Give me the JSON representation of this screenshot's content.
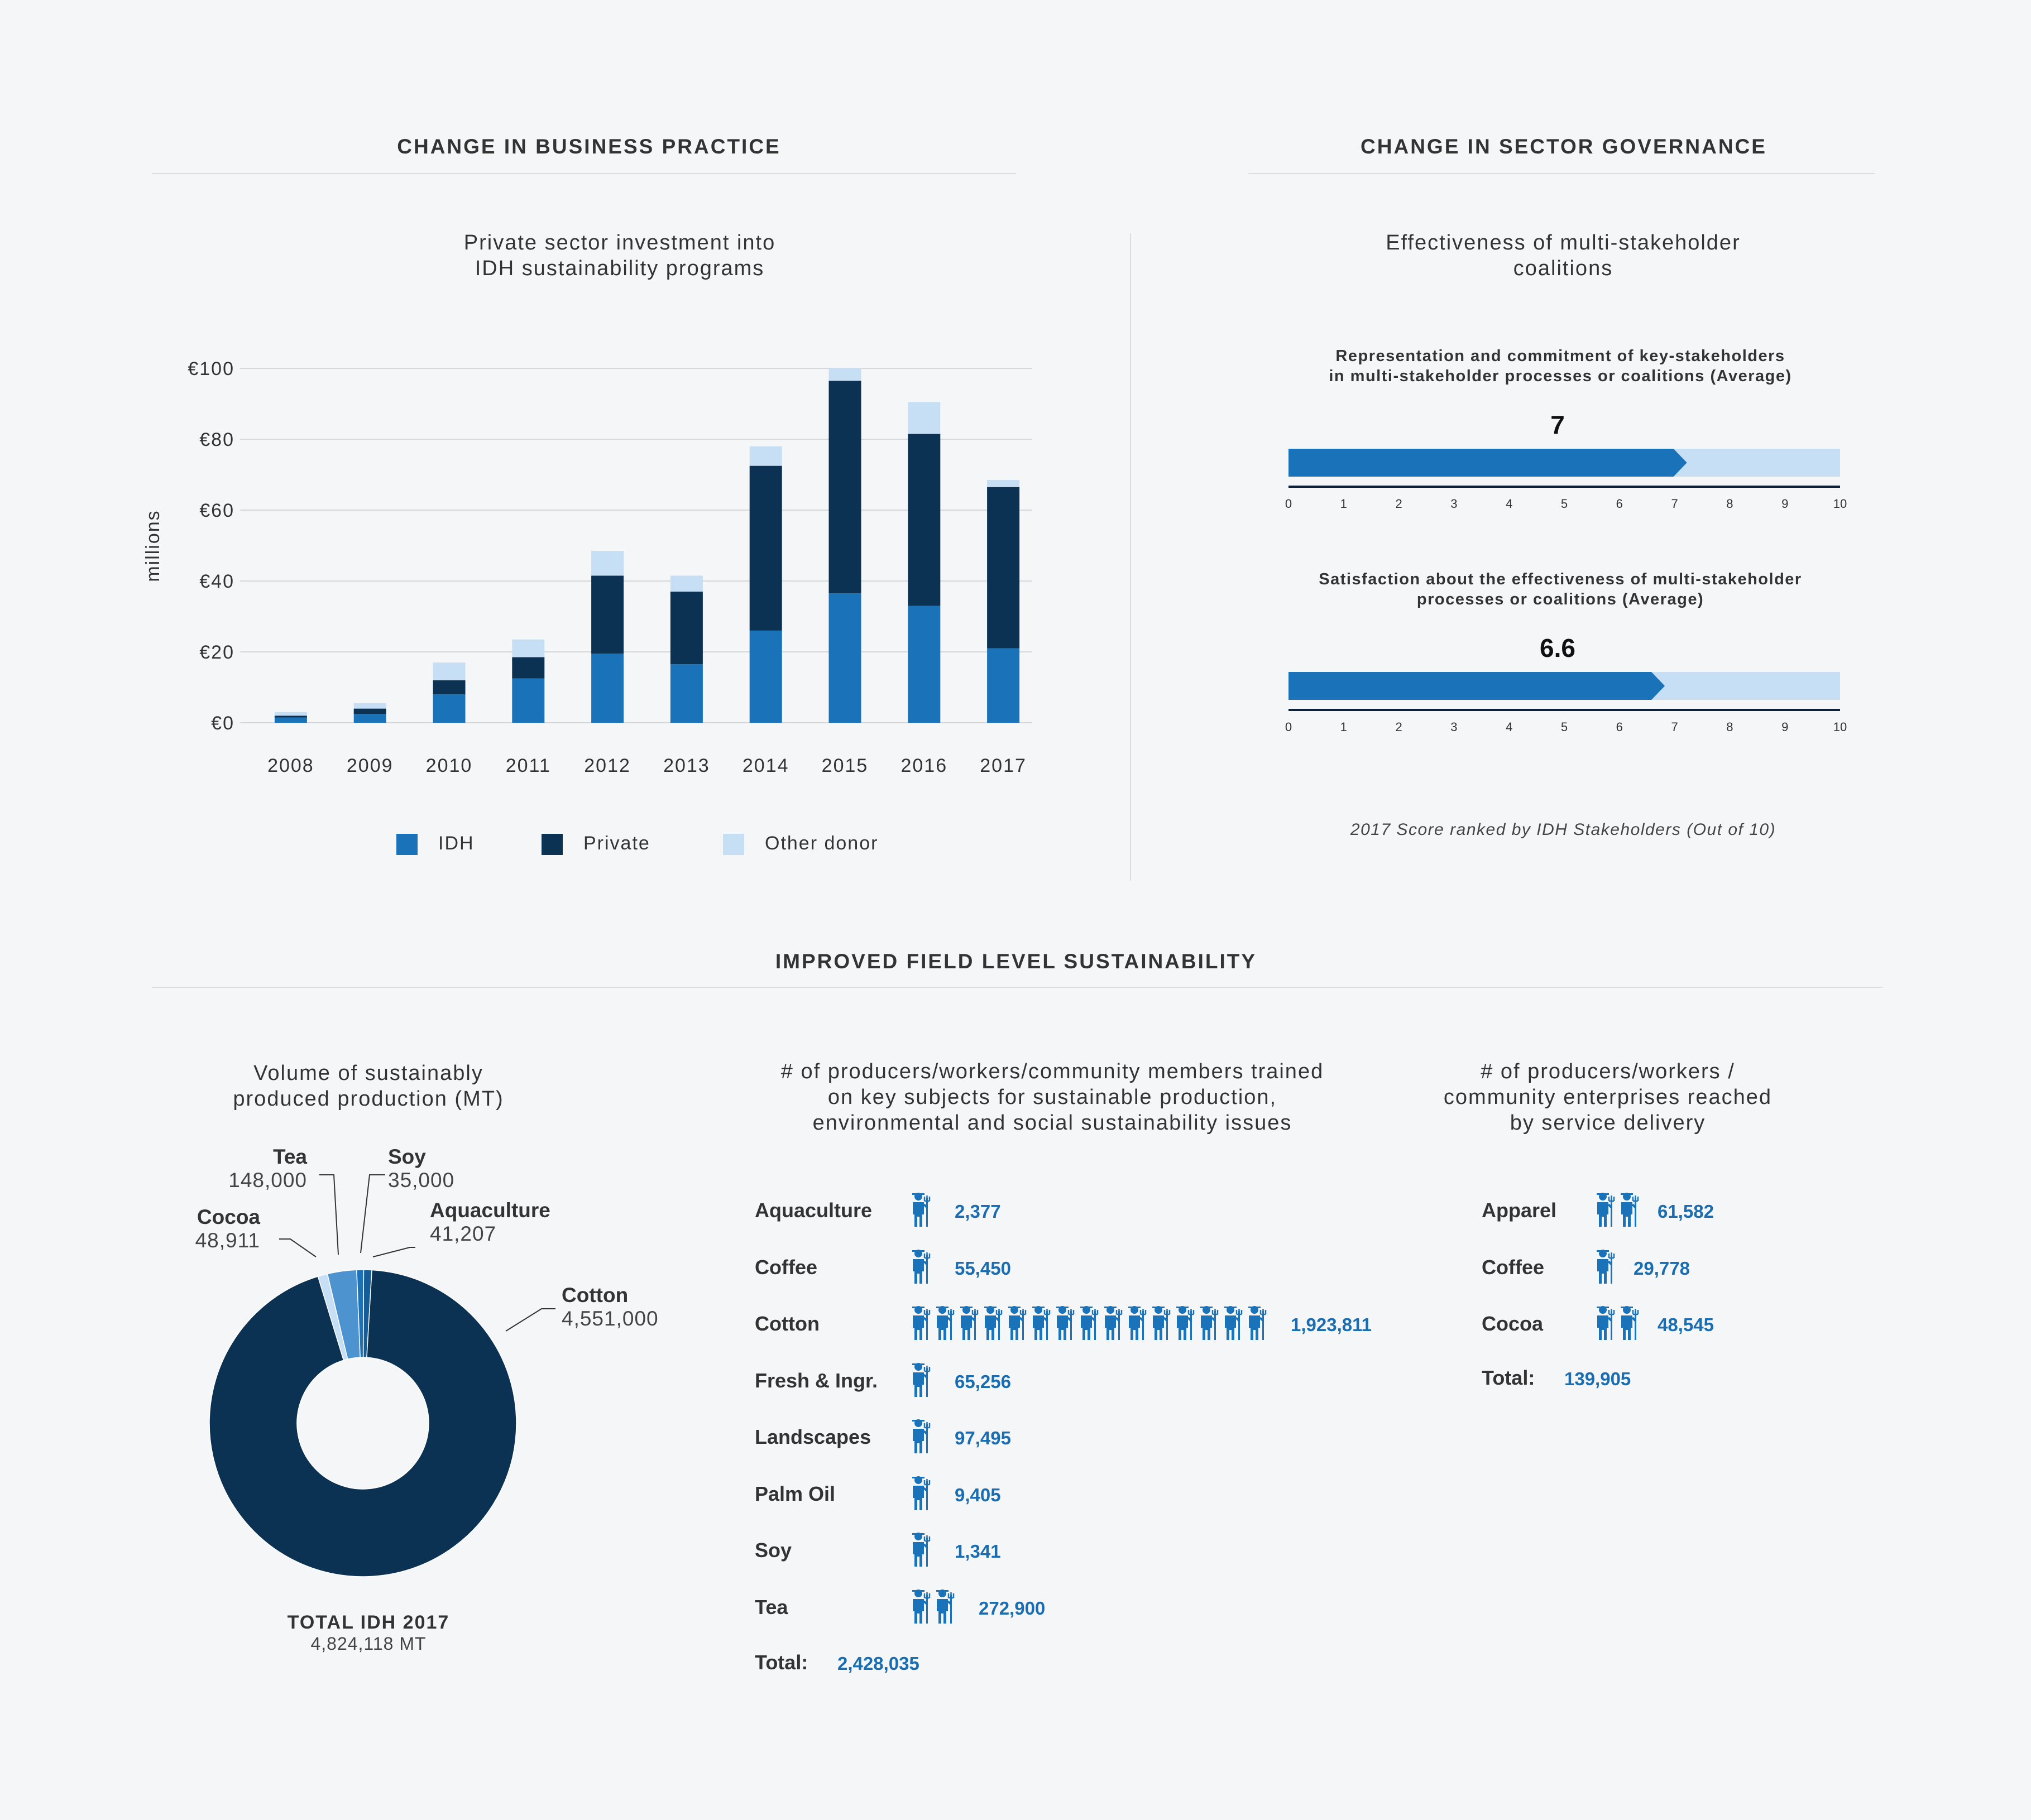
{
  "sections": {
    "business": "CHANGE IN BUSINESS PRACTICE",
    "governance": "CHANGE IN SECTOR GOVERNANCE",
    "field": "IMPROVED FIELD LEVEL SUSTAINABILITY"
  },
  "colors": {
    "idh": "#1a73b9",
    "private": "#0b3253",
    "other": "#c6dff4",
    "grid": "#d5d7da",
    "value_text": "#1a6db0",
    "bg": "#f5f6f8"
  },
  "investment": {
    "title_line1": "Private sector investment into",
    "title_line2": "IDH sustainability programs",
    "ylabel": "millions",
    "ytick_labels": [
      "€0",
      "€20",
      "€40",
      "€60",
      "€80",
      "€100"
    ],
    "legend": [
      "IDH",
      "Private",
      "Other donor"
    ]
  },
  "governance": {
    "title_line1": "Effectiveness of multi-stakeholder",
    "title_line2": "coalitions",
    "bar1_title_line1": "Representation and commitment of key-stakeholders",
    "bar1_title_line2": "in multi-stakeholder processes or coalitions (Average)",
    "bar1_score": "7",
    "bar2_title_line1": "Satisfaction about the effectiveness of multi-stakeholder",
    "bar2_title_line2": "processes or coalitions (Average)",
    "bar2_score": "6.6",
    "scale_ticks": [
      "0",
      "1",
      "2",
      "3",
      "4",
      "5",
      "6",
      "7",
      "8",
      "9",
      "10"
    ],
    "note": "2017 Score ranked by IDH Stakeholders (Out of 10)"
  },
  "volume": {
    "title_line1": "Volume of sustainably",
    "title_line2": "produced production (MT)",
    "labels": {
      "tea_name": "Tea",
      "tea_value": "148,000",
      "soy_name": "Soy",
      "soy_value": "35,000",
      "cocoa_name": "Cocoa",
      "cocoa_value": "48,911",
      "aqua_name": "Aquaculture",
      "aqua_value": "41,207",
      "cotton_name": "Cotton",
      "cotton_value": "4,551,000"
    },
    "total_label": "TOTAL IDH 2017",
    "total_value": "4,824,118 MT"
  },
  "trained": {
    "title_line1": "# of producers/workers/community members trained",
    "title_line2": "on key subjects for sustainable production,",
    "title_line3": "environmental and social sustainability issues",
    "rows": [
      {
        "label": "Aquaculture",
        "value": "2,377",
        "icons": 1
      },
      {
        "label": "Coffee",
        "value": "55,450",
        "icons": 1
      },
      {
        "label": "Cotton",
        "value": "1,923,811",
        "icons": 15
      },
      {
        "label": "Fresh & Ingr.",
        "value": "65,256",
        "icons": 1
      },
      {
        "label": "Landscapes",
        "value": "97,495",
        "icons": 1
      },
      {
        "label": "Palm Oil",
        "value": "9,405",
        "icons": 1
      },
      {
        "label": "Soy",
        "value": "1,341",
        "icons": 1
      },
      {
        "label": "Tea",
        "value": "272,900",
        "icons": 2
      }
    ],
    "total_label": "Total:",
    "total_value": "2,428,035"
  },
  "reached": {
    "title_line1": "# of producers/workers /",
    "title_line2": "community enterprises reached",
    "title_line3": "by service delivery",
    "rows": [
      {
        "label": "Apparel",
        "value": "61,582",
        "icons": 2
      },
      {
        "label": "Coffee",
        "value": "29,778",
        "icons": 1
      },
      {
        "label": "Cocoa",
        "value": "48,545",
        "icons": 2
      }
    ],
    "total_label": "Total:",
    "total_value": "139,905"
  },
  "icon_name": "farmer-icon",
  "chart_data": [
    {
      "type": "bar",
      "stacked": true,
      "title": "Private sector investment into IDH sustainability programs",
      "ylabel": "millions",
      "categories": [
        "2008",
        "2009",
        "2010",
        "2011",
        "2012",
        "2013",
        "2014",
        "2015",
        "2016",
        "2017"
      ],
      "series": [
        {
          "name": "IDH",
          "values": [
            1.5,
            2.5,
            8,
            12.5,
            19.5,
            16.5,
            26,
            36.5,
            33,
            21
          ]
        },
        {
          "name": "Private",
          "values": [
            0.5,
            1.5,
            4,
            6,
            22,
            20.5,
            46.5,
            60,
            48.5,
            45.5
          ]
        },
        {
          "name": "Other donor",
          "values": [
            1,
            1.5,
            5,
            5,
            7,
            4.5,
            5.5,
            3.5,
            9,
            2
          ]
        }
      ],
      "ylim": [
        0,
        100
      ],
      "grid": true,
      "legend": "bottom"
    },
    {
      "type": "bar",
      "orientation": "horizontal",
      "title": "Effectiveness of multi-stakeholder coalitions",
      "categories": [
        "Representation and commitment of key-stakeholders in multi-stakeholder processes or coalitions (Average)",
        "Satisfaction about the effectiveness of multi-stakeholder processes or coalitions (Average)"
      ],
      "values": [
        7,
        6.6
      ],
      "xlim": [
        0,
        10
      ]
    },
    {
      "type": "pie",
      "donut": true,
      "title": "Volume of sustainably produced production (MT)",
      "labels": [
        "Cotton",
        "Cocoa",
        "Tea",
        "Soy",
        "Aquaculture"
      ],
      "values": [
        4551000,
        48911,
        148000,
        35000,
        41207
      ],
      "total": 4824118
    },
    {
      "type": "bar",
      "orientation": "horizontal",
      "title": "# of producers/workers/community members trained on key subjects for sustainable production, environmental and social sustainability issues",
      "categories": [
        "Aquaculture",
        "Coffee",
        "Cotton",
        "Fresh & Ingr.",
        "Landscapes",
        "Palm Oil",
        "Soy",
        "Tea"
      ],
      "values": [
        2377,
        55450,
        1923811,
        65256,
        97495,
        9405,
        1341,
        272900
      ],
      "total": 2428035
    },
    {
      "type": "bar",
      "orientation": "horizontal",
      "title": "# of producers/workers / community enterprises reached by service delivery",
      "categories": [
        "Apparel",
        "Coffee",
        "Cocoa"
      ],
      "values": [
        61582,
        29778,
        48545
      ],
      "total": 139905
    }
  ]
}
